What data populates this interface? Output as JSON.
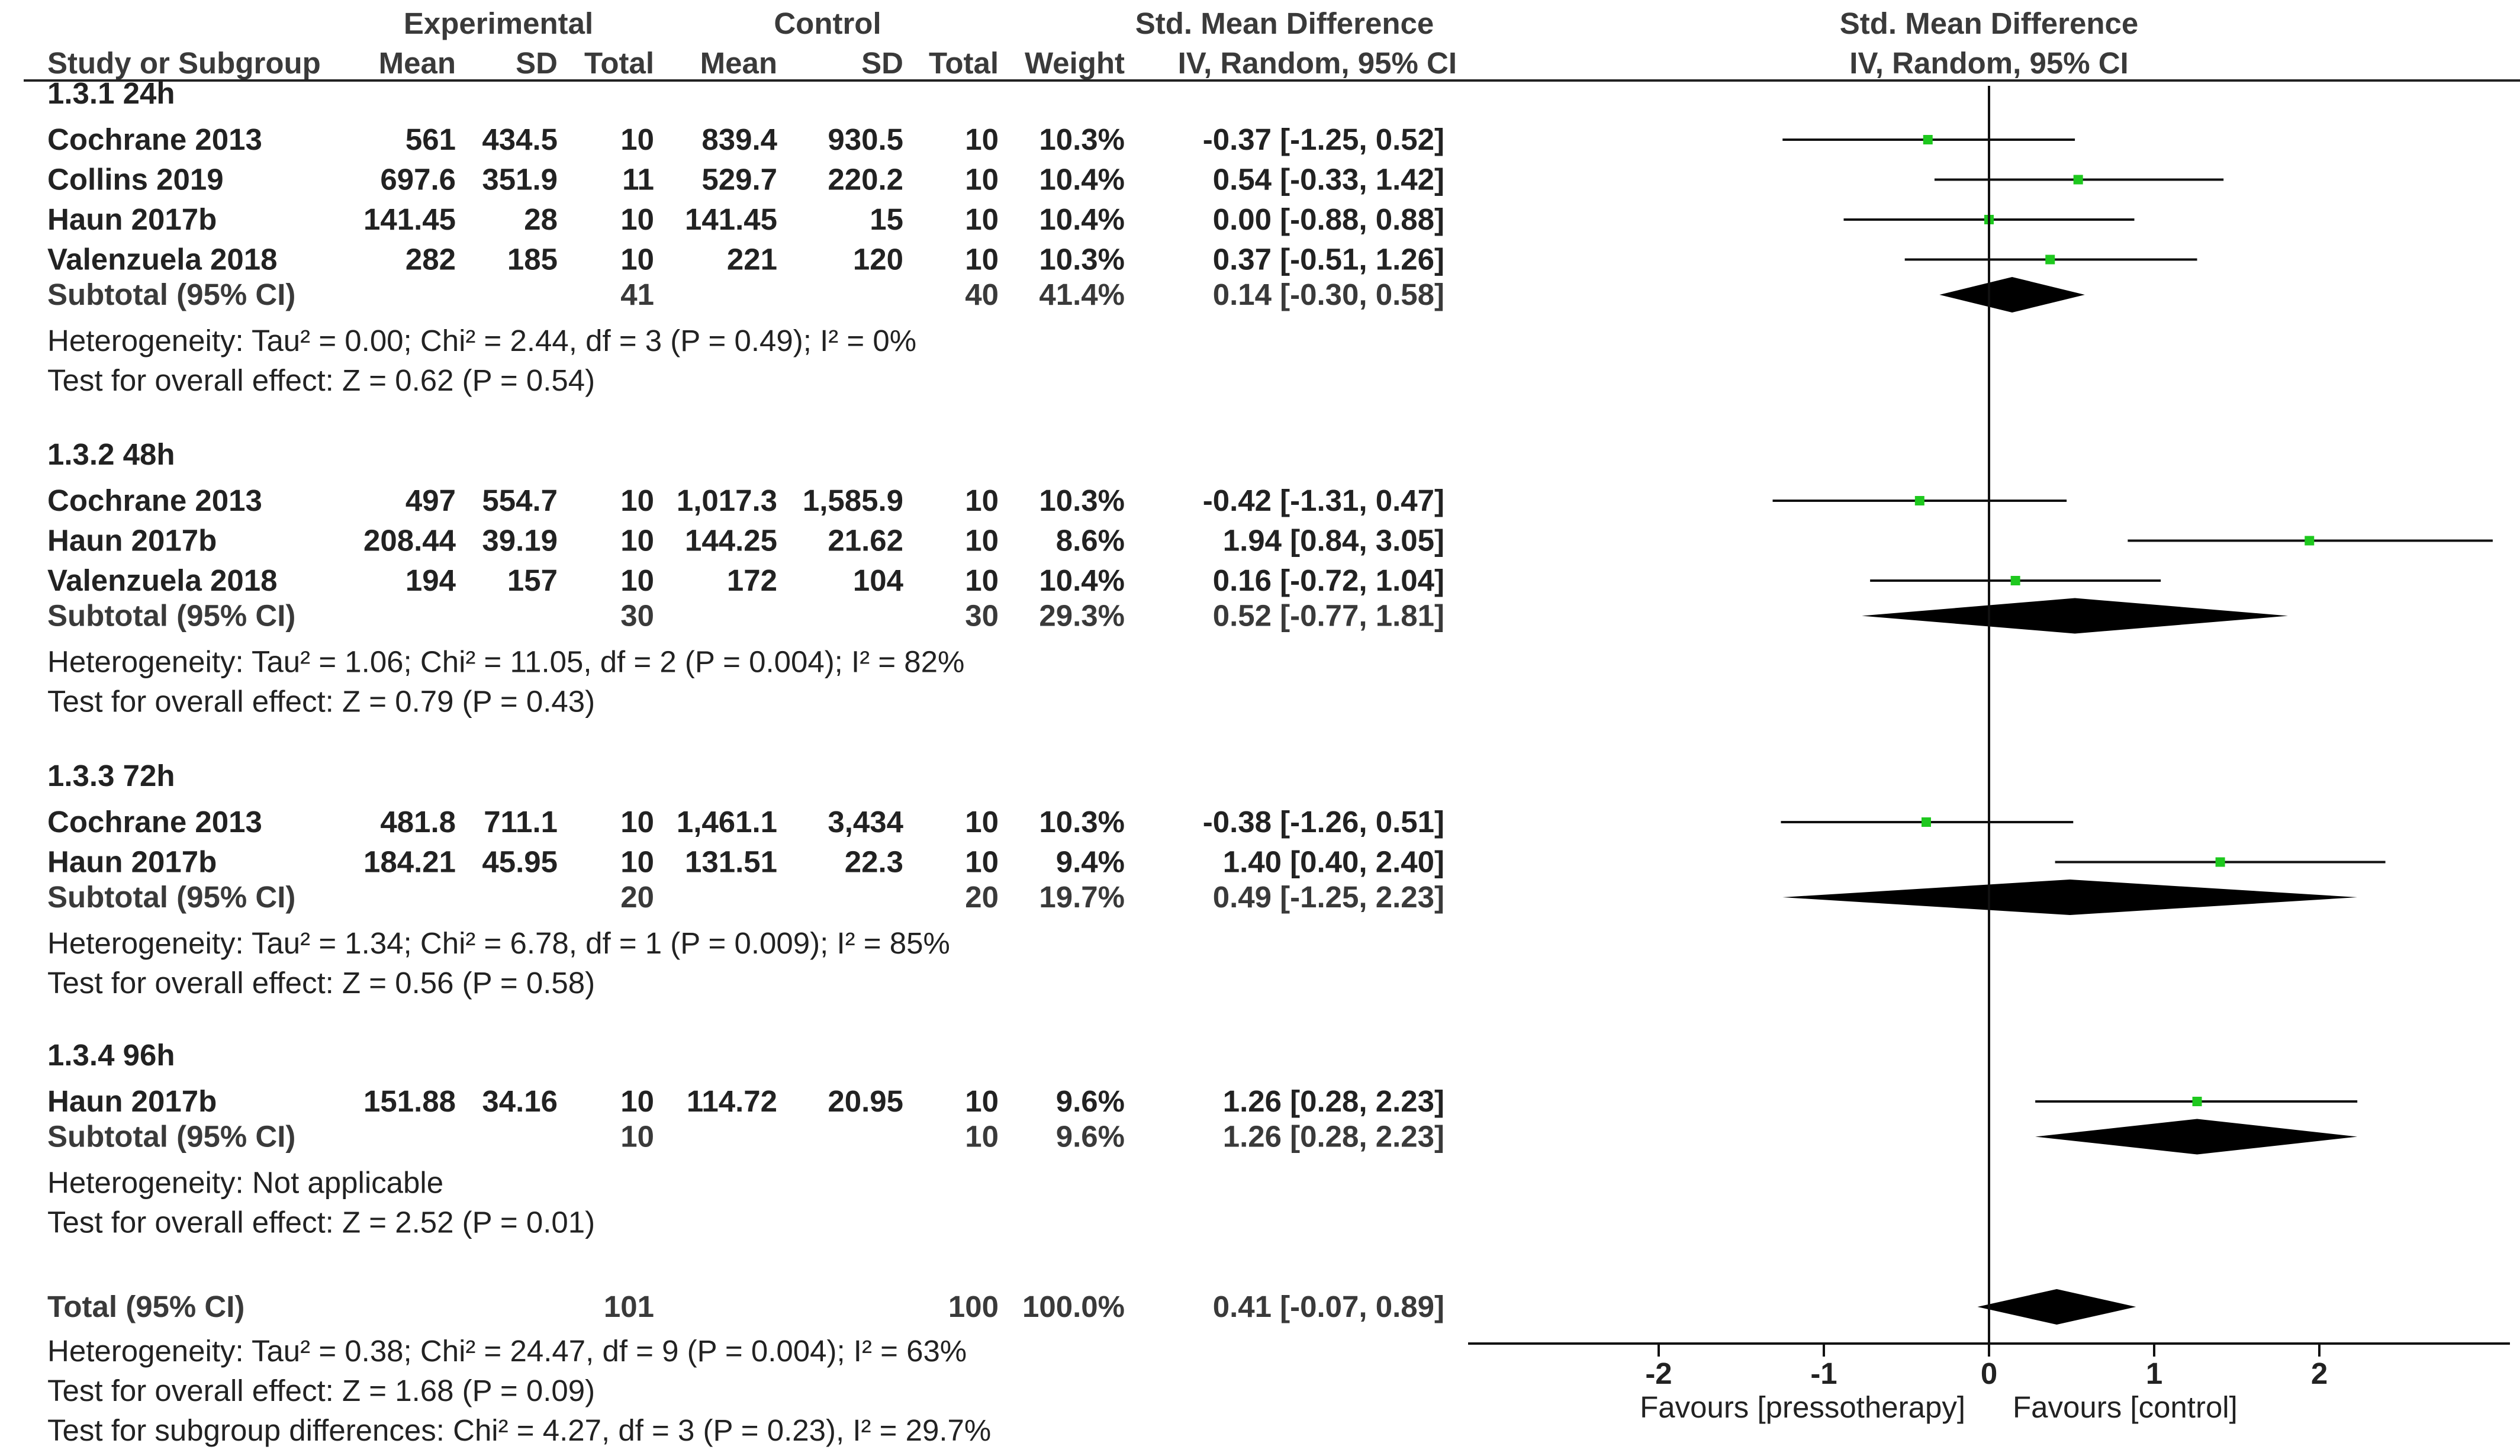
{
  "header": {
    "group_experimental": "Experimental",
    "group_control": "Control",
    "effect_title_table": "Std. Mean Difference",
    "effect_title_plot": "Std. Mean Difference",
    "col_study": "Study or Subgroup",
    "col_mean_e": "Mean",
    "col_sd_e": "SD",
    "col_total_e": "Total",
    "col_mean_c": "Mean",
    "col_sd_c": "SD",
    "col_total_c": "Total",
    "col_weight": "Weight",
    "col_method_table": "IV, Random, 95% CI",
    "col_method_plot": "IV, Random, 95% CI"
  },
  "chart_data": {
    "type": "forest",
    "x_range": [
      -3,
      3
    ],
    "ticks": [
      "-2",
      "-1",
      "0",
      "1",
      "2"
    ],
    "tick_values": [
      -2,
      -1,
      0,
      1,
      2
    ],
    "label_left": "Favours [pressotherapy]",
    "label_right": "Favours [control]",
    "marker_color": "#1ec81e",
    "subgroups": [
      {
        "title": "1.3.1 24h",
        "studies": [
          {
            "name": "Cochrane 2013",
            "mean_e": "561",
            "sd_e": "434.5",
            "total_e": "10",
            "mean_c": "839.4",
            "sd_c": "930.5",
            "total_c": "10",
            "weight": "10.3%",
            "ci_text": "-0.37 [-1.25, 0.52]",
            "est": -0.37,
            "lo": -1.25,
            "hi": 0.52
          },
          {
            "name": "Collins 2019",
            "mean_e": "697.6",
            "sd_e": "351.9",
            "total_e": "11",
            "mean_c": "529.7",
            "sd_c": "220.2",
            "total_c": "10",
            "weight": "10.4%",
            "ci_text": "0.54 [-0.33, 1.42]",
            "est": 0.54,
            "lo": -0.33,
            "hi": 1.42
          },
          {
            "name": "Haun 2017b",
            "mean_e": "141.45",
            "sd_e": "28",
            "total_e": "10",
            "mean_c": "141.45",
            "sd_c": "15",
            "total_c": "10",
            "weight": "10.4%",
            "ci_text": "0.00 [-0.88, 0.88]",
            "est": 0.0,
            "lo": -0.88,
            "hi": 0.88
          },
          {
            "name": "Valenzuela 2018",
            "mean_e": "282",
            "sd_e": "185",
            "total_e": "10",
            "mean_c": "221",
            "sd_c": "120",
            "total_c": "10",
            "weight": "10.3%",
            "ci_text": "0.37 [-0.51, 1.26]",
            "est": 0.37,
            "lo": -0.51,
            "hi": 1.26
          }
        ],
        "subtotal": {
          "label": "Subtotal (95% CI)",
          "total_e": "41",
          "total_c": "40",
          "weight": "41.4%",
          "ci_text": "0.14 [-0.30, 0.58]",
          "est": 0.14,
          "lo": -0.3,
          "hi": 0.58
        },
        "heterogeneity": "Heterogeneity: Tau² = 0.00; Chi² = 2.44, df = 3 (P = 0.49); I² = 0%",
        "overall": "Test for overall effect: Z = 0.62 (P = 0.54)"
      },
      {
        "title": "1.3.2 48h",
        "studies": [
          {
            "name": "Cochrane 2013",
            "mean_e": "497",
            "sd_e": "554.7",
            "total_e": "10",
            "mean_c": "1,017.3",
            "sd_c": "1,585.9",
            "total_c": "10",
            "weight": "10.3%",
            "ci_text": "-0.42 [-1.31, 0.47]",
            "est": -0.42,
            "lo": -1.31,
            "hi": 0.47
          },
          {
            "name": "Haun 2017b",
            "mean_e": "208.44",
            "sd_e": "39.19",
            "total_e": "10",
            "mean_c": "144.25",
            "sd_c": "21.62",
            "total_c": "10",
            "weight": "8.6%",
            "ci_text": "1.94 [0.84, 3.05]",
            "est": 1.94,
            "lo": 0.84,
            "hi": 3.05
          },
          {
            "name": "Valenzuela 2018",
            "mean_e": "194",
            "sd_e": "157",
            "total_e": "10",
            "mean_c": "172",
            "sd_c": "104",
            "total_c": "10",
            "weight": "10.4%",
            "ci_text": "0.16 [-0.72, 1.04]",
            "est": 0.16,
            "lo": -0.72,
            "hi": 1.04
          }
        ],
        "subtotal": {
          "label": "Subtotal (95% CI)",
          "total_e": "30",
          "total_c": "30",
          "weight": "29.3%",
          "ci_text": "0.52 [-0.77, 1.81]",
          "est": 0.52,
          "lo": -0.77,
          "hi": 1.81
        },
        "heterogeneity": "Heterogeneity: Tau² = 1.06; Chi² = 11.05, df = 2 (P = 0.004); I² = 82%",
        "overall": "Test for overall effect: Z = 0.79 (P = 0.43)"
      },
      {
        "title": "1.3.3 72h",
        "studies": [
          {
            "name": "Cochrane 2013",
            "mean_e": "481.8",
            "sd_e": "711.1",
            "total_e": "10",
            "mean_c": "1,461.1",
            "sd_c": "3,434",
            "total_c": "10",
            "weight": "10.3%",
            "ci_text": "-0.38 [-1.26, 0.51]",
            "est": -0.38,
            "lo": -1.26,
            "hi": 0.51
          },
          {
            "name": "Haun 2017b",
            "mean_e": "184.21",
            "sd_e": "45.95",
            "total_e": "10",
            "mean_c": "131.51",
            "sd_c": "22.3",
            "total_c": "10",
            "weight": "9.4%",
            "ci_text": "1.40 [0.40, 2.40]",
            "est": 1.4,
            "lo": 0.4,
            "hi": 2.4
          }
        ],
        "subtotal": {
          "label": "Subtotal (95% CI)",
          "total_e": "20",
          "total_c": "20",
          "weight": "19.7%",
          "ci_text": "0.49 [-1.25, 2.23]",
          "est": 0.49,
          "lo": -1.25,
          "hi": 2.23
        },
        "heterogeneity": "Heterogeneity: Tau² = 1.34; Chi² = 6.78, df = 1 (P = 0.009); I² = 85%",
        "overall": "Test for overall effect: Z = 0.56 (P = 0.58)"
      },
      {
        "title": "1.3.4 96h",
        "studies": [
          {
            "name": "Haun 2017b",
            "mean_e": "151.88",
            "sd_e": "34.16",
            "total_e": "10",
            "mean_c": "114.72",
            "sd_c": "20.95",
            "total_c": "10",
            "weight": "9.6%",
            "ci_text": "1.26 [0.28, 2.23]",
            "est": 1.26,
            "lo": 0.28,
            "hi": 2.23
          }
        ],
        "subtotal": {
          "label": "Subtotal (95% CI)",
          "total_e": "10",
          "total_c": "10",
          "weight": "9.6%",
          "ci_text": "1.26 [0.28, 2.23]",
          "est": 1.26,
          "lo": 0.28,
          "hi": 2.23
        },
        "heterogeneity": "Heterogeneity: Not applicable",
        "overall": "Test for overall effect: Z = 2.52 (P = 0.01)"
      }
    ],
    "total": {
      "label": "Total (95% CI)",
      "total_e": "101",
      "total_c": "100",
      "weight": "100.0%",
      "ci_text": "0.41 [-0.07, 0.89]",
      "est": 0.41,
      "lo": -0.07,
      "hi": 0.89
    },
    "footer": [
      "Heterogeneity: Tau² = 0.38; Chi² = 24.47, df = 9 (P = 0.004); I² = 63%",
      "Test for overall effect: Z = 1.68 (P = 0.09)",
      "Test for subgroup differences: Chi² = 4.27, df = 3 (P = 0.23), I² = 29.7%"
    ]
  }
}
